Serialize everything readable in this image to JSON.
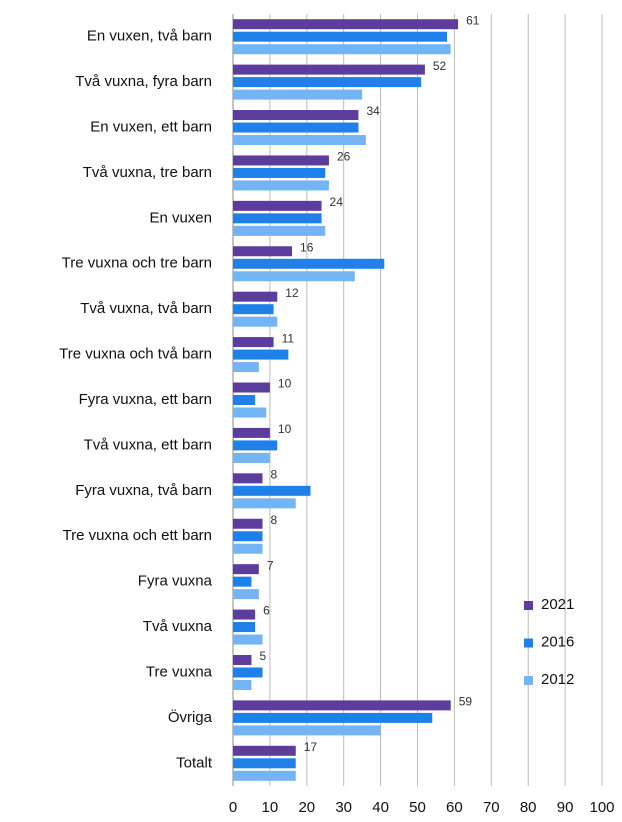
{
  "chart_data": {
    "type": "bar",
    "orientation": "horizontal",
    "categories": [
      "En vuxen, två barn",
      "Två vuxna, fyra barn",
      "En vuxen, ett barn",
      "Två vuxna, tre barn",
      "En vuxen",
      "Tre vuxna och tre barn",
      "Två vuxna, två barn",
      "Tre vuxna och två barn",
      "Fyra vuxna, ett barn",
      "Två vuxna, ett barn",
      "Fyra vuxna, två barn",
      "Tre vuxna och ett barn",
      "Fyra vuxna",
      "Två vuxna",
      "Tre vuxna",
      "Övriga",
      "Totalt"
    ],
    "series": [
      {
        "name": "2021",
        "color": "#5c3c9c",
        "values": [
          61,
          52,
          34,
          26,
          24,
          16,
          12,
          11,
          10,
          10,
          8,
          8,
          7,
          6,
          5,
          59,
          17
        ],
        "show_labels": true
      },
      {
        "name": "2016",
        "color": "#1f80ea",
        "values": [
          58,
          51,
          34,
          25,
          24,
          41,
          11,
          15,
          6,
          12,
          21,
          8,
          5,
          6,
          8,
          54,
          17
        ]
      },
      {
        "name": "2012",
        "color": "#72b4f4",
        "values": [
          59,
          35,
          36,
          26,
          25,
          33,
          12,
          7,
          9,
          10,
          17,
          8,
          7,
          8,
          5,
          40,
          17
        ]
      }
    ],
    "xlim": [
      0,
      100
    ],
    "xticks": [
      0,
      10,
      20,
      30,
      40,
      50,
      60,
      70,
      80,
      90,
      100
    ],
    "grid": true,
    "legend": "right"
  }
}
